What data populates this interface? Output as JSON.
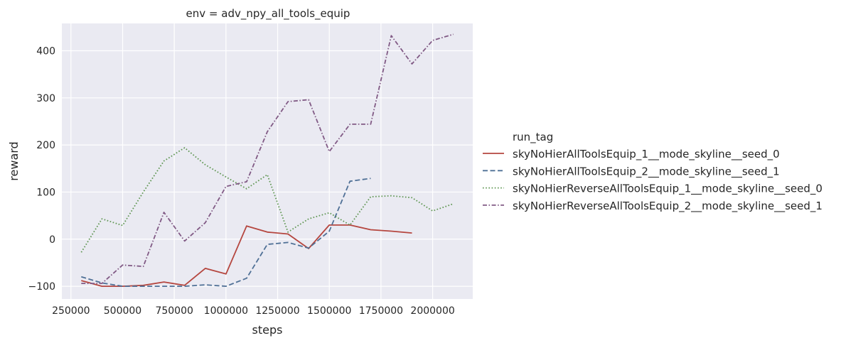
{
  "chart_data": {
    "type": "line",
    "title": "env = adv_npy_all_tools_equip",
    "xlabel": "steps",
    "ylabel": "reward",
    "xlim": [
      206000,
      2194000
    ],
    "ylim": [
      -127,
      458
    ],
    "xticks": [
      250000,
      500000,
      750000,
      1000000,
      1250000,
      1500000,
      1750000,
      2000000
    ],
    "xtick_labels": [
      "250000",
      "500000",
      "750000",
      "1000000",
      "1250000",
      "1500000",
      "1750000",
      "2000000"
    ],
    "yticks": [
      -100,
      0,
      100,
      200,
      300,
      400
    ],
    "ytick_labels": [
      "−100",
      "0",
      "100",
      "200",
      "300",
      "400"
    ],
    "grid": true,
    "background": "#eaeaf2",
    "legend": {
      "title": "run_tag",
      "placement": "right"
    },
    "series": [
      {
        "name": "skyNoHierAllToolsEquip_1__mode_skyline__seed_0",
        "color": "#b5463f",
        "dash": "solid",
        "x": [
          300000,
          400000,
          500000,
          600000,
          700000,
          800000,
          900000,
          1000000,
          1100000,
          1200000,
          1300000,
          1400000,
          1500000,
          1600000,
          1700000,
          1800000,
          1900000
        ],
        "y": [
          -88,
          -100,
          -100,
          -98,
          -91,
          -98,
          -62,
          -74,
          28,
          15,
          11,
          -20,
          30,
          30,
          20,
          17,
          13
        ]
      },
      {
        "name": "skyNoHierAllToolsEquip_2__mode_skyline__seed_1",
        "color": "#4f7096",
        "dash": "dashed",
        "x": [
          300000,
          400000,
          500000,
          600000,
          700000,
          800000,
          900000,
          1000000,
          1100000,
          1200000,
          1300000,
          1400000,
          1500000,
          1600000,
          1700000
        ],
        "y": [
          -80,
          -93,
          -100,
          -100,
          -100,
          -100,
          -97,
          -100,
          -83,
          -11,
          -7,
          -19,
          17,
          123,
          129
        ]
      },
      {
        "name": "skyNoHierReverseAllToolsEquip_1__mode_skyline__seed_0",
        "color": "#5d9550",
        "dash": "dotted",
        "x": [
          300000,
          400000,
          500000,
          600000,
          700000,
          800000,
          900000,
          1000000,
          1100000,
          1200000,
          1300000,
          1400000,
          1500000,
          1600000,
          1700000,
          1800000,
          1900000,
          2000000,
          2100000
        ],
        "y": [
          -28,
          43,
          29,
          100,
          166,
          194,
          158,
          132,
          107,
          137,
          15,
          43,
          56,
          30,
          90,
          92,
          88,
          60,
          75
        ]
      },
      {
        "name": "skyNoHierReverseAllToolsEquip_2__mode_skyline__seed_1",
        "color": "#815a85",
        "dash": "dashdot",
        "x": [
          300000,
          400000,
          500000,
          600000,
          700000,
          800000,
          900000,
          1000000,
          1100000,
          1200000,
          1300000,
          1400000,
          1500000,
          1600000,
          1700000,
          1800000,
          1900000,
          2000000,
          2100000
        ],
        "y": [
          -94,
          -94,
          -55,
          -58,
          57,
          -4,
          35,
          112,
          122,
          228,
          292,
          296,
          186,
          244,
          244,
          432,
          372,
          422,
          435
        ]
      }
    ]
  }
}
